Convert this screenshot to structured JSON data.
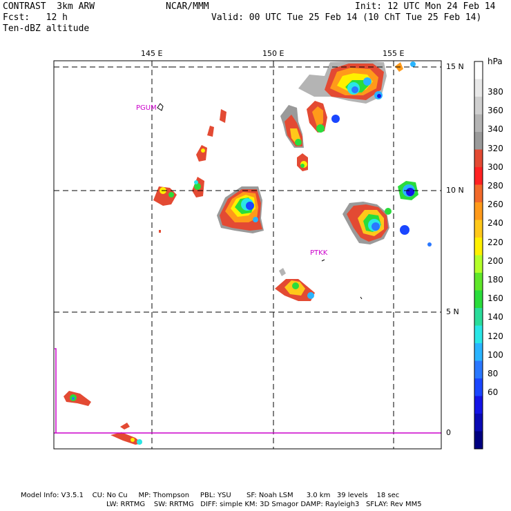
{
  "header": {
    "left_line1": "CONTRAST  3km ARW",
    "left_line2": "Fcst:   12 h",
    "left_line3": "Ten-dBZ altitude",
    "center_line1": "NCAR/MMM",
    "right_line1": "Init: 12 UTC Mon 24 Feb 14",
    "right_line2": "Valid: 00 UTC Tue 25 Feb 14 (10 ChT Tue 25 Feb 14)"
  },
  "axes": {
    "lon_labels": [
      "145 E",
      "150 E",
      "155 E"
    ],
    "lat_labels": [
      "15 N",
      "10 N",
      "5 N",
      "0"
    ]
  },
  "stations": [
    {
      "name": "PGUM"
    },
    {
      "name": "PTKK"
    }
  ],
  "colorbar": {
    "unit": "hPa",
    "labels": [
      "380",
      "360",
      "340",
      "320",
      "300",
      "280",
      "260",
      "240",
      "220",
      "200",
      "180",
      "160",
      "140",
      "120",
      "100",
      "80",
      "60"
    ],
    "colors": [
      "#ffffff",
      "#e8e8e8",
      "#cfcfcf",
      "#b4b4b4",
      "#9a9a9a",
      "#e34a33",
      "#ff2222",
      "#f26a2a",
      "#ff9a1a",
      "#ffc81a",
      "#fff000",
      "#b4ff2a",
      "#5fe62a",
      "#2adc3c",
      "#2adc9a",
      "#2ae6e6",
      "#2ab4ff",
      "#2a78ff",
      "#1a46ff",
      "#1414e6",
      "#0a0ab4",
      "#000080"
    ]
  },
  "footer": {
    "line1": "Model Info: V3.5.1    CU: No Cu     MP: Thompson     PBL: YSU       SF: Noah LSM      3.0 km   39 levels    18 sec",
    "line2": "LW: RRTMG    SW: RRTMG   DIFF: simple KM: 3D Smagor DAMP: Rayleigh3   SFLAY: Rev MM5"
  },
  "palette": {
    "frame": "#000000",
    "grid": "#000000",
    "station_text": "#cc00cc",
    "equator_line": "#cc00cc"
  }
}
